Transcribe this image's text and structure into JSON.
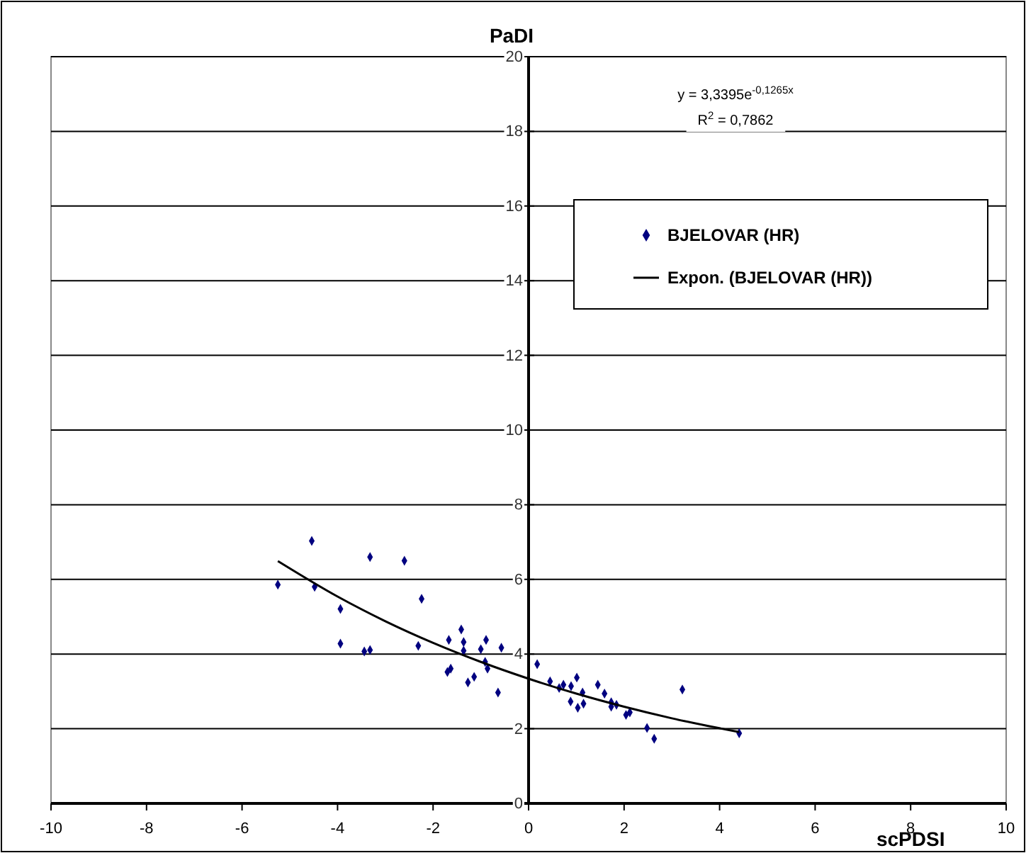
{
  "chart_data": {
    "type": "scatter",
    "xlabel": "scPDSI",
    "ylabel": "PaDI",
    "xlim": [
      -10,
      10
    ],
    "xticks": [
      -10,
      -8,
      -6,
      -4,
      -2,
      0,
      2,
      4,
      6,
      8,
      10
    ],
    "ylim": [
      0,
      20
    ],
    "yticks": [
      0,
      2,
      4,
      6,
      8,
      10,
      12,
      14,
      16,
      18,
      20
    ],
    "grid": "y",
    "legend": "top right",
    "marker": "diamond",
    "annotations": [
      "y = 3,3395e$^{-0,1265x}$",
      "R$^{2}$ = 0,7862"
    ],
    "series": [
      {
        "name": "BJELOVAR (HR)",
        "color": "#000080",
        "x": [
          -5.25,
          -4.54,
          -4.48,
          -3.94,
          -3.94,
          -3.44,
          -3.32,
          -3.32,
          -2.6,
          -2.24,
          -2.31,
          -1.67,
          -1.7,
          -1.63,
          -1.41,
          -1.36,
          -1.36,
          -1.27,
          -1.14,
          -1.0,
          -0.89,
          -0.91,
          -0.86,
          -0.64,
          -0.57,
          0.18,
          0.45,
          0.64,
          0.73,
          0.89,
          1.01,
          0.88,
          1.03,
          1.13,
          1.15,
          1.45,
          1.59,
          1.73,
          1.73,
          1.84,
          2.04,
          2.12,
          2.48,
          2.63,
          3.22,
          4.41
        ],
        "values": [
          5.86,
          7.03,
          5.8,
          5.21,
          4.28,
          4.07,
          4.11,
          6.6,
          6.5,
          5.48,
          4.22,
          4.38,
          3.52,
          3.61,
          4.66,
          4.32,
          4.09,
          3.24,
          3.39,
          4.13,
          4.38,
          3.79,
          3.61,
          2.97,
          4.17,
          3.73,
          3.27,
          3.09,
          3.18,
          3.14,
          3.37,
          2.73,
          2.56,
          2.97,
          2.67,
          3.18,
          2.94,
          2.71,
          2.59,
          2.64,
          2.37,
          2.44,
          2.02,
          1.73,
          3.05,
          1.88
        ]
      },
      {
        "name": "Expon. (BJELOVAR (HR))",
        "type": "line",
        "color": "#000000",
        "marker": "none",
        "line_style": "solid",
        "x": [
          -5.25,
          -4,
          -3,
          -2,
          -1,
          0,
          1,
          2,
          3,
          4.41
        ],
        "values": [
          6.49,
          5.54,
          4.88,
          4.3,
          3.79,
          3.34,
          2.94,
          2.59,
          2.28,
          1.91
        ]
      }
    ]
  }
}
